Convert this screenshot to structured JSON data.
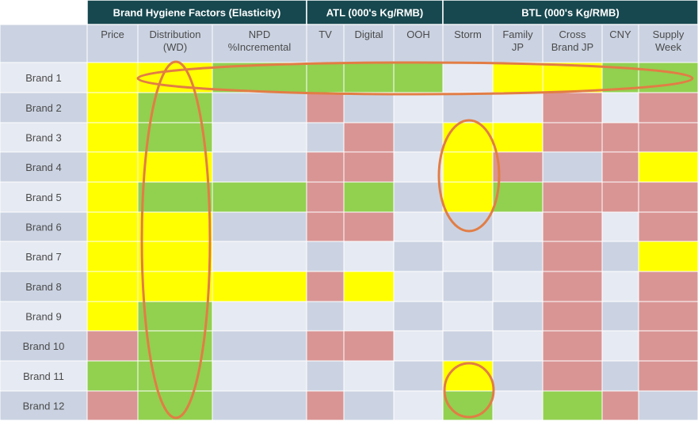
{
  "colors": {
    "header_bg": "#17484f",
    "header_text": "#ffffff",
    "label_dark": "#cbd3e2",
    "label_light": "#e6eaf2",
    "label_text": "#4a4a4a",
    "grid_line": "#ffffff",
    "annotation": "#e27d45",
    "yellow": "#ffff00",
    "green": "#92d050",
    "red": "#d99594"
  },
  "chart_data": {
    "type": "heatmap",
    "group_headers": [
      {
        "label": "Brand Hygiene Factors (Elasticity)",
        "span": [
          0,
          2
        ]
      },
      {
        "label": "ATL (000's Kg/RMB)",
        "span": [
          3,
          5
        ]
      },
      {
        "label": "BTL (000's Kg/RMB)",
        "span": [
          6,
          10
        ]
      }
    ],
    "columns": [
      [
        "Price"
      ],
      [
        "Distribution",
        "(WD)"
      ],
      [
        "NPD",
        "%Incremental"
      ],
      [
        "TV"
      ],
      [
        "Digital"
      ],
      [
        "OOH"
      ],
      [
        "Storm"
      ],
      [
        "Family",
        "JP"
      ],
      [
        "Cross",
        "Brand JP"
      ],
      [
        "CNY"
      ],
      [
        "Supply",
        "Week"
      ]
    ],
    "rows": [
      "Brand 1",
      "Brand 2",
      "Brand 3",
      "Brand 4",
      "Brand 5",
      "Brand 6",
      "Brand 7",
      "Brand 8",
      "Brand 9",
      "Brand 10",
      "Brand 11",
      "Brand 12"
    ],
    "legend_values": [
      "Y = yellow",
      "G = green",
      "R = red",
      "- = blank"
    ],
    "cells": [
      [
        "Y",
        "Y",
        "G",
        "G",
        "G",
        "G",
        "-",
        "Y",
        "Y",
        "G",
        "G"
      ],
      [
        "Y",
        "G",
        "-",
        "R",
        "-",
        "-",
        "-",
        "-",
        "R",
        "-",
        "R"
      ],
      [
        "Y",
        "G",
        "-",
        "-",
        "R",
        "-",
        "Y",
        "Y",
        "R",
        "R",
        "R"
      ],
      [
        "Y",
        "Y",
        "-",
        "R",
        "R",
        "-",
        "Y",
        "R",
        "-",
        "R",
        "Y"
      ],
      [
        "Y",
        "G",
        "G",
        "R",
        "G",
        "-",
        "Y",
        "G",
        "R",
        "R",
        "R"
      ],
      [
        "Y",
        "Y",
        "-",
        "R",
        "R",
        "-",
        "-",
        "-",
        "R",
        "-",
        "R"
      ],
      [
        "Y",
        "Y",
        "-",
        "-",
        "-",
        "-",
        "-",
        "-",
        "R",
        "-",
        "Y"
      ],
      [
        "Y",
        "Y",
        "Y",
        "R",
        "Y",
        "-",
        "-",
        "-",
        "R",
        "-",
        "R"
      ],
      [
        "Y",
        "G",
        "-",
        "-",
        "-",
        "-",
        "-",
        "-",
        "R",
        "-",
        "R"
      ],
      [
        "R",
        "G",
        "-",
        "R",
        "R",
        "-",
        "-",
        "-",
        "R",
        "-",
        "R"
      ],
      [
        "G",
        "G",
        "-",
        "-",
        "-",
        "-",
        "Y",
        "-",
        "R",
        "-",
        "R"
      ],
      [
        "R",
        "G",
        "-",
        "R",
        "-",
        "-",
        "G",
        "-",
        "G",
        "R",
        "-"
      ]
    ],
    "annotations": [
      {
        "shape": "ellipse",
        "highlights": "Distribution (WD) column, Brand 1 to Brand 12"
      },
      {
        "shape": "ellipse",
        "highlights": "Brand 1 row, Distribution (WD) to Supply Week"
      },
      {
        "shape": "ellipse",
        "highlights": "Storm column, Brand 3 to Brand 6"
      },
      {
        "shape": "ellipse",
        "highlights": "Storm column, Brand 11 to Brand 12"
      }
    ]
  }
}
